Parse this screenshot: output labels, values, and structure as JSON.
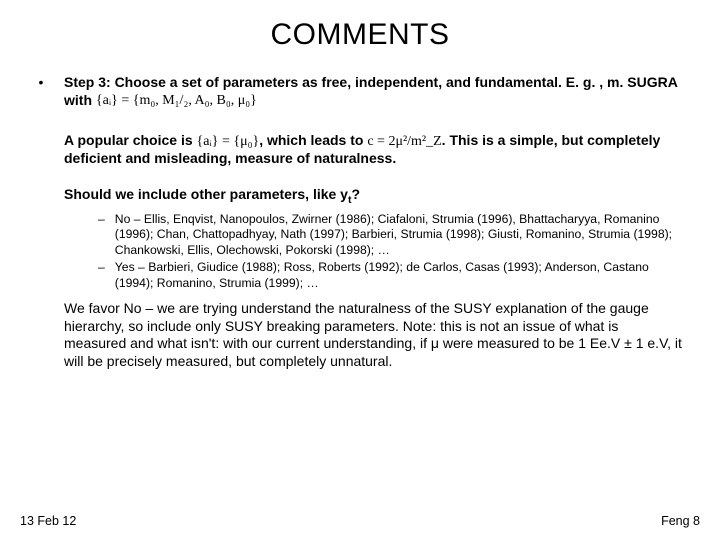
{
  "title": "COMMENTS",
  "bullet": {
    "line1_a": "Step 3: Choose a set of parameters as free, independent, and fundamental. E. g. , m. SUGRA with ",
    "formula1": "{aᵢ} = {m₀, M₁/₂, A₀, B₀, μ₀}",
    "popular_a": "A popular choice is ",
    "formula2": "{aᵢ} = {μ₀}",
    "popular_b": ", which leads to ",
    "formula3": "c = 2μ²/m²_Z",
    "popular_c": ".  This is a simple, but completely deficient and misleading, measure of naturalness.",
    "should_a": "Should we include other parameters, like y",
    "should_sub": "t",
    "should_b": "?"
  },
  "sub": {
    "no": "No – Ellis, Enqvist, Nanopoulos, Zwirner (1986); Ciafaloni, Strumia (1996), Bhattacharyya, Romanino (1996); Chan, Chattopadhyay, Nath (1997); Barbieri, Strumia (1998); Giusti, Romanino, Strumia (1998); Chankowski, Ellis, Olechowski, Pokorski (1998); …",
    "yes": "Yes – Barbieri, Giudice (1988); Ross, Roberts (1992); de Carlos, Casas (1993); Anderson, Castano (1994); Romanino, Strumia (1999); …"
  },
  "final": "We favor No – we are trying understand the naturalness of the SUSY explanation of the gauge hierarchy, so include only SUSY breaking parameters. Note: this is not an issue of what is measured and what isn't: with our current understanding, if μ were measured to be 1 Ee.V ± 1 e.V, it will be precisely measured, but completely unnatural.",
  "footer": {
    "left": "13 Feb 12",
    "right": "Feng 8"
  },
  "style": {
    "background": "#ffffff",
    "text_color": "#000000",
    "title_fontsize": 30,
    "body_fontsize": 14,
    "sub_fontsize": 12.2,
    "footer_fontsize": 12.5,
    "font_family": "Arial"
  }
}
